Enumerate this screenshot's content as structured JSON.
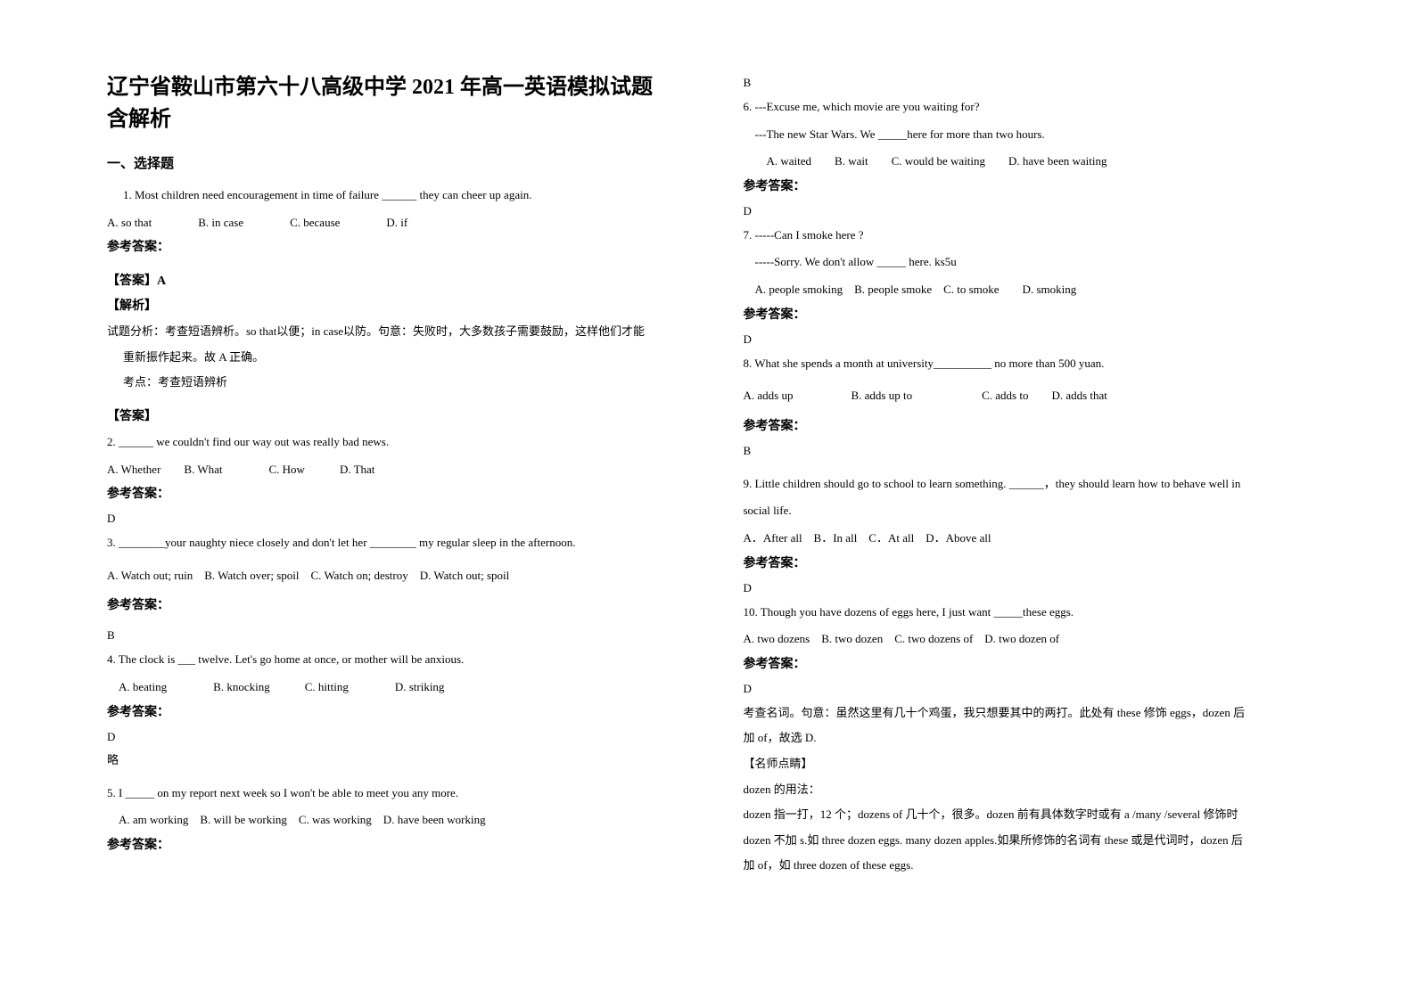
{
  "title": "辽宁省鞍山市第六十八高级中学 2021 年高一英语模拟试题含解析",
  "section_heading": "一、选择题",
  "q1": {
    "text": "1. Most children need encouragement in time of failure ______ they can cheer up again.",
    "options": "A. so that    B. in case    C. because    D. if",
    "answer_label": "参考答案：",
    "answer_key_label": "【答案】A",
    "explain_label": "【解析】",
    "explain_text": "试题分析：考查短语辨析。so that以便；in case以防。句意：失败时，大多数孩子需要鼓励，这样他们才能",
    "explain_text2": "重新振作起来。故 A 正确。",
    "point_label": "考点：考查短语辨析"
  },
  "q2": {
    "answer_heading": "【答案】",
    "text": "2. ______ we couldn't find our way out was really bad news.",
    "options": "A. Whether  B. What    C. How   D. That",
    "answer_label": "参考答案：",
    "answer_value": "D"
  },
  "q3": {
    "text": "3. ________your naughty niece closely and don't let her ________ my regular sleep in the afternoon.",
    "options": "A. Watch out; ruin B. Watch over; spoil C. Watch on; destroy D. Watch out; spoil",
    "answer_label": "参考答案：",
    "answer_value": "B"
  },
  "q4": {
    "text": "4. The clock is ___ twelve. Let's go home at once, or mother will be anxious.",
    "options": " A. beating    B. knocking   C. hitting    D. striking",
    "answer_label": "参考答案：",
    "answer_value": "D",
    "note": "略"
  },
  "q5": {
    "text": "5. I _____ on my report next week so I won't be able to meet you any more.",
    "options": " A. am working B. will be working C. was working D. have been working",
    "answer_label": "参考答案：",
    "answer_value": "B"
  },
  "q6": {
    "text1": "6. ---Excuse me, which movie are you waiting for?",
    "text2": " ---The new Star Wars. We _____here for more than two hours.",
    "options": "  A. waited  B. wait  C. would be waiting  D. have been waiting",
    "answer_label": "参考答案：",
    "answer_value": "D"
  },
  "q7": {
    "text1": "7. -----Can I smoke here ?",
    "text2": " -----Sorry. We don't allow _____ here. ks5u",
    "options": " A. people smoking B. people smoke C. to smoke  D. smoking",
    "answer_label": "参考答案：",
    "answer_value": "D"
  },
  "q8": {
    "text": "8. What she spends a month at university__________ no more than 500 yuan.",
    "options": "A. adds up     B. adds up to      C. adds to  D. adds that",
    "answer_label": "参考答案：",
    "answer_value": "B"
  },
  "q9": {
    "text1": "9. Little children should go to school to learn something. ______，they should learn how to behave well in",
    "text2": "social life.",
    "options": "A．After all B．In all C．At all D．Above all",
    "answer_label": "参考答案：",
    "answer_value": "D"
  },
  "q10": {
    "text": "10. Though you have dozens of eggs here, I just want _____these eggs.",
    "options": "A. two dozens B. two dozen C. two dozens of D. two dozen of",
    "answer_label": "参考答案：",
    "answer_value": "D",
    "explain1": "考查名词。句意：虽然这里有几十个鸡蛋，我只想要其中的两打。此处有 these 修饰 eggs，dozen 后",
    "explain2": "加 of，故选 D.",
    "tip_label": "【名师点睛】",
    "tip_text1": "dozen 的用法：",
    "tip_text2": "dozen 指一打，12 个；dozens of 几十个，很多。dozen 前有具体数字时或有 a /many /several 修饰时",
    "tip_text3": "dozen 不加 s.如 three dozen eggs. many dozen apples.如果所修饰的名词有 these 或是代词时，dozen 后",
    "tip_text4": "加 of，如 three dozen of these eggs."
  }
}
